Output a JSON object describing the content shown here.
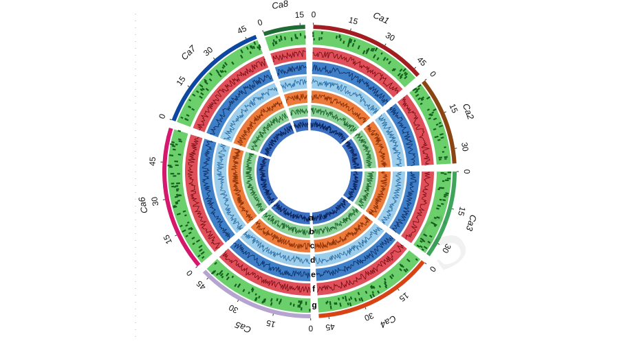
{
  "figure": {
    "chromosomes": [
      {
        "name": "Ca1",
        "length": 48,
        "color": "#a21d21",
        "ticks": [
          "0",
          "15",
          "30",
          "45"
        ]
      },
      {
        "name": "Ca2",
        "length": 36,
        "color": "#8b4513",
        "ticks": [
          "0",
          "15",
          "30"
        ]
      },
      {
        "name": "Ca3",
        "length": 36,
        "color": "#3fa55d",
        "ticks": [
          "0",
          "15",
          "30"
        ]
      },
      {
        "name": "Ca4",
        "length": 49,
        "color": "#d84315",
        "ticks": [
          "0",
          "15",
          "30",
          "45"
        ]
      },
      {
        "name": "Ca5",
        "length": 48,
        "color": "#b5a4cf",
        "ticks": [
          "0",
          "15",
          "30",
          "45"
        ]
      },
      {
        "name": "Ca6",
        "length": 59,
        "color": "#d6186d",
        "ticks": [
          "0",
          "15",
          "30",
          "45"
        ]
      },
      {
        "name": "Ca7",
        "length": 49,
        "color": "#0d47a1",
        "ticks": [
          "0",
          "15",
          "30",
          "45"
        ]
      },
      {
        "name": "Ca8",
        "length": 17,
        "color": "#1f6b36",
        "ticks": [
          "0",
          "15"
        ]
      }
    ],
    "tracks": [
      {
        "letter": "g",
        "color": "#6bcf6b",
        "line": "#14601e"
      },
      {
        "letter": "f",
        "color": "#e0505a",
        "line": "#7a0d14"
      },
      {
        "letter": "e",
        "color": "#3f7fc7",
        "line": "#0d2f66"
      },
      {
        "letter": "d",
        "color": "#9ccdea",
        "line": "#2a6ea6"
      },
      {
        "letter": "c",
        "color": "#ec7a3a",
        "line": "#8a2e05"
      },
      {
        "letter": "b",
        "color": "#8ed19b",
        "line": "#1d6b2b"
      },
      {
        "letter": "a",
        "color": "#3b6fc2",
        "line": "#0a245c"
      }
    ]
  }
}
